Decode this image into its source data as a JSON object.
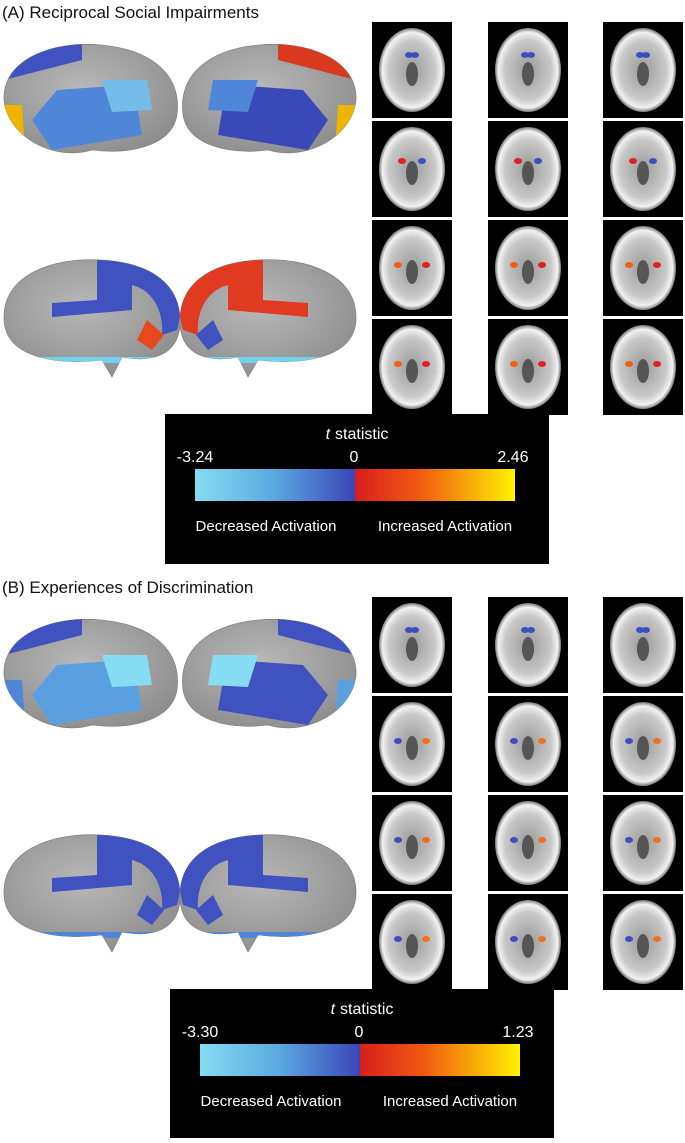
{
  "panels": [
    {
      "title": "(A) Reciprocal Social Impairments",
      "colorbar": {
        "label_italic": "t",
        "label": "statistic",
        "min": "-3.24",
        "zero": "0",
        "max": "2.46",
        "left_caption": "Decreased Activation",
        "right_caption": "Increased Activation"
      }
    },
    {
      "title": "(B) Experiences of Discrimination",
      "colorbar": {
        "label_italic": "t",
        "label": "statistic",
        "min": "-3.30",
        "zero": "0",
        "max": "1.23",
        "left_caption": "Decreased Activation",
        "right_caption": "Increased Activation"
      }
    }
  ]
}
